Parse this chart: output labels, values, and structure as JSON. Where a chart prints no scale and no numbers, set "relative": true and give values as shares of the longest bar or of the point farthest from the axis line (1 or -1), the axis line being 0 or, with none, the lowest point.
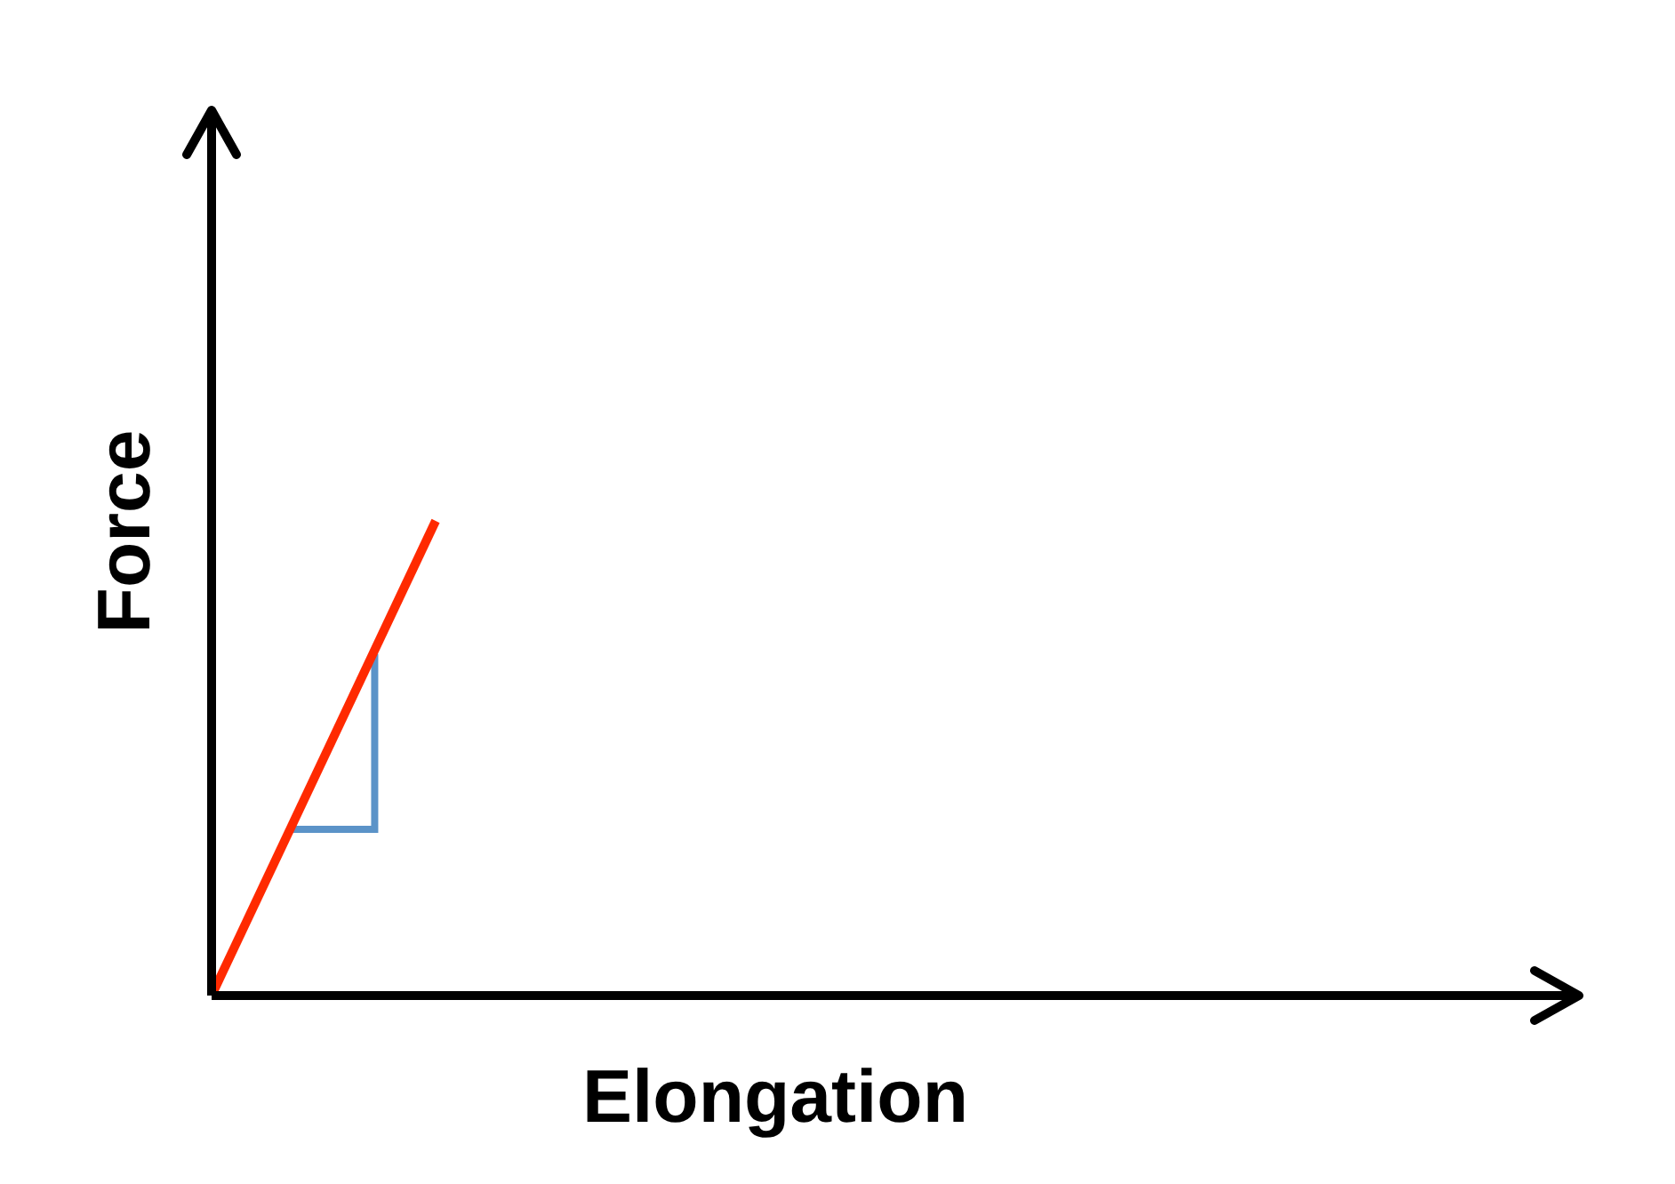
{
  "chart_data": {
    "type": "line",
    "xlabel": "Elongation",
    "ylabel": "Force",
    "relative": true,
    "categories": [
      null,
      null
    ],
    "series": [
      {
        "color": "#ff2a00",
        "values": [
          0,
          1
        ]
      }
    ]
  }
}
